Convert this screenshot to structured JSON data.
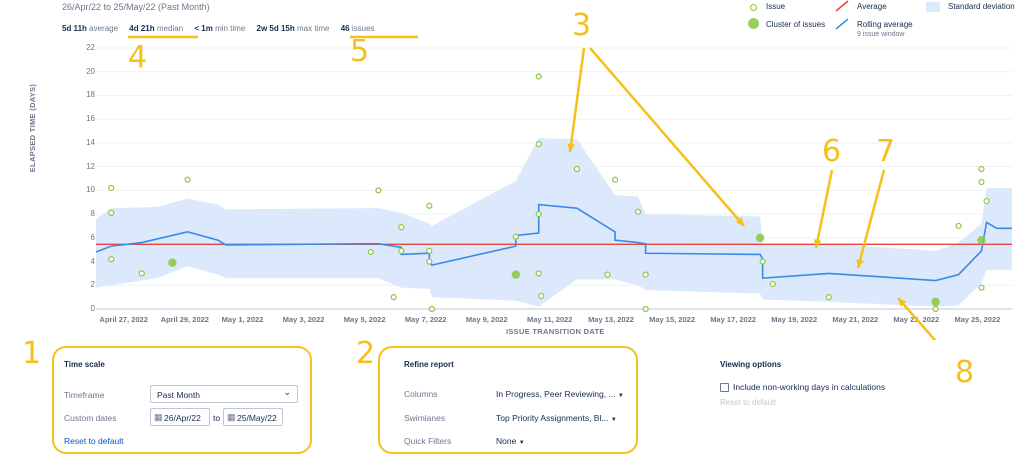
{
  "header": {
    "subtitle": "26/Apr/22 to 25/May/22 (Past Month)",
    "stats": [
      {
        "value": "5d 11h",
        "label": "average"
      },
      {
        "value": "4d 21h",
        "label": "median"
      },
      {
        "value": "< 1m",
        "label": "min time"
      },
      {
        "value": "2w 5d 15h",
        "label": "max time"
      },
      {
        "value": "46",
        "label": "issues"
      }
    ]
  },
  "legend": {
    "issue": "Issue",
    "cluster": "Cluster of issues",
    "average": "Average",
    "rolling": "Rolling average",
    "rolling_sub": "9 issue window",
    "stddev": "Standard deviation"
  },
  "colors": {
    "issue": "#8cc63f",
    "average": "#e8453c",
    "rolling": "#3a8be6",
    "stddev": "#dce8fb",
    "annotation": "#f6c01a"
  },
  "chart_data": {
    "type": "scatter",
    "xlabel": "ISSUE TRANSITION DATE",
    "ylabel": "ELAPSED TIME (DAYS)",
    "ylim": [
      0,
      22
    ],
    "yticks": [
      "0",
      "2",
      "4",
      "6",
      "8",
      "10",
      "12",
      "14",
      "16",
      "18",
      "20",
      "22"
    ],
    "xlim": [
      "2022-04-26",
      "2022-05-26"
    ],
    "xticks": [
      {
        "date": "2022-04-27",
        "label": "April 27, 2022"
      },
      {
        "date": "2022-04-29",
        "label": "April 29, 2022"
      },
      {
        "date": "2022-05-01",
        "label": "May 1, 2022"
      },
      {
        "date": "2022-05-03",
        "label": "May 3, 2022"
      },
      {
        "date": "2022-05-05",
        "label": "May 5, 2022"
      },
      {
        "date": "2022-05-07",
        "label": "May 7, 2022"
      },
      {
        "date": "2022-05-09",
        "label": "May 9, 2022"
      },
      {
        "date": "2022-05-11",
        "label": "May 11, 2022"
      },
      {
        "date": "2022-05-13",
        "label": "May 13, 2022"
      },
      {
        "date": "2022-05-15",
        "label": "May 15, 2022"
      },
      {
        "date": "2022-05-17",
        "label": "May 17, 2022"
      },
      {
        "date": "2022-05-19",
        "label": "May 19, 2022"
      },
      {
        "date": "2022-05-21",
        "label": "May 21, 2022"
      },
      {
        "date": "2022-05-23",
        "label": "May 23, 2022"
      },
      {
        "date": "2022-05-25",
        "label": "May 25, 2022"
      }
    ],
    "average": 5.45,
    "issues": [
      {
        "x": "2022-04-26T12:00",
        "y": 10.2
      },
      {
        "x": "2022-04-26T12:00",
        "y": 8.1
      },
      {
        "x": "2022-04-26T12:00",
        "y": 4.2
      },
      {
        "x": "2022-04-27T12:00",
        "y": 3.0
      },
      {
        "x": "2022-04-29T00:00",
        "y": 10.9
      },
      {
        "x": "2022-05-05T00:00",
        "y": 4.8
      },
      {
        "x": "2022-05-05T06:00",
        "y": 10.0
      },
      {
        "x": "2022-05-05T18:00",
        "y": 1.0
      },
      {
        "x": "2022-05-06T00:00",
        "y": 6.9
      },
      {
        "x": "2022-05-06T00:00",
        "y": 4.9
      },
      {
        "x": "2022-05-06T22:00",
        "y": 8.7
      },
      {
        "x": "2022-05-06T22:00",
        "y": 4.9
      },
      {
        "x": "2022-05-06T22:00",
        "y": 4.0
      },
      {
        "x": "2022-05-07T00:00",
        "y": 0.0
      },
      {
        "x": "2022-05-09T18:00",
        "y": 6.1
      },
      {
        "x": "2022-05-10T12:00",
        "y": 19.6
      },
      {
        "x": "2022-05-10T12:00",
        "y": 13.9
      },
      {
        "x": "2022-05-10T12:00",
        "y": 8.0
      },
      {
        "x": "2022-05-10T12:00",
        "y": 3.0
      },
      {
        "x": "2022-05-10T14:00",
        "y": 1.1
      },
      {
        "x": "2022-05-11T18:00",
        "y": 11.8
      },
      {
        "x": "2022-05-12T18:00",
        "y": 2.9
      },
      {
        "x": "2022-05-13T00:00",
        "y": 10.9
      },
      {
        "x": "2022-05-13T18:00",
        "y": 8.2
      },
      {
        "x": "2022-05-14T00:00",
        "y": 2.9
      },
      {
        "x": "2022-05-14T00:00",
        "y": 0.0
      },
      {
        "x": "2022-05-17T20:00",
        "y": 4.0
      },
      {
        "x": "2022-05-18T04:00",
        "y": 2.1
      },
      {
        "x": "2022-05-20T00:00",
        "y": 1.0
      },
      {
        "x": "2022-05-23T12:00",
        "y": 0.0
      },
      {
        "x": "2022-05-24T06:00",
        "y": 7.0
      },
      {
        "x": "2022-05-25T00:00",
        "y": 11.8
      },
      {
        "x": "2022-05-25T00:00",
        "y": 10.7
      },
      {
        "x": "2022-05-25T04:00",
        "y": 9.1
      },
      {
        "x": "2022-05-25T00:00",
        "y": 1.8
      }
    ],
    "clusters": [
      {
        "x": "2022-04-28T12:00",
        "y": 3.9
      },
      {
        "x": "2022-05-09T18:00",
        "y": 2.9
      },
      {
        "x": "2022-05-17T18:00",
        "y": 6.0
      },
      {
        "x": "2022-05-23T12:00",
        "y": 0.6
      },
      {
        "x": "2022-05-25T00:00",
        "y": 5.8
      }
    ],
    "rolling_average": [
      {
        "x": "2022-04-26T00:00",
        "y": 4.8
      },
      {
        "x": "2022-04-26T12:00",
        "y": 5.3
      },
      {
        "x": "2022-04-27T12:00",
        "y": 5.6
      },
      {
        "x": "2022-04-29T00:00",
        "y": 6.5
      },
      {
        "x": "2022-04-30T00:00",
        "y": 5.8
      },
      {
        "x": "2022-04-30T06:00",
        "y": 5.4
      },
      {
        "x": "2022-05-04T18:00",
        "y": 5.5
      },
      {
        "x": "2022-05-05T06:00",
        "y": 5.5
      },
      {
        "x": "2022-05-06T00:00",
        "y": 5.2
      },
      {
        "x": "2022-05-06T00:00",
        "y": 4.6
      },
      {
        "x": "2022-05-06T22:00",
        "y": 4.7
      },
      {
        "x": "2022-05-06T22:00",
        "y": 4.0
      },
      {
        "x": "2022-05-07T00:00",
        "y": 3.7
      },
      {
        "x": "2022-05-09T18:00",
        "y": 5.3
      },
      {
        "x": "2022-05-09T18:00",
        "y": 6.2
      },
      {
        "x": "2022-05-10T12:00",
        "y": 6.4
      },
      {
        "x": "2022-05-10T12:00",
        "y": 8.8
      },
      {
        "x": "2022-05-11T18:00",
        "y": 8.5
      },
      {
        "x": "2022-05-13T00:00",
        "y": 6.5
      },
      {
        "x": "2022-05-13T00:00",
        "y": 5.8
      },
      {
        "x": "2022-05-13T18:00",
        "y": 5.6
      },
      {
        "x": "2022-05-14T00:00",
        "y": 5.5
      },
      {
        "x": "2022-05-14T00:00",
        "y": 4.7
      },
      {
        "x": "2022-05-17T18:00",
        "y": 4.6
      },
      {
        "x": "2022-05-17T20:00",
        "y": 4.2
      },
      {
        "x": "2022-05-17T20:00",
        "y": 2.6
      },
      {
        "x": "2022-05-20T00:00",
        "y": 3.0
      },
      {
        "x": "2022-05-23T12:00",
        "y": 2.4
      },
      {
        "x": "2022-05-24T06:00",
        "y": 2.9
      },
      {
        "x": "2022-05-25T00:00",
        "y": 4.9
      },
      {
        "x": "2022-05-25T04:00",
        "y": 7.3
      },
      {
        "x": "2022-05-25T12:00",
        "y": 6.8
      },
      {
        "x": "2022-05-26T00:00",
        "y": 6.8
      }
    ],
    "std_upper": [
      {
        "x": "2022-04-26T00:00",
        "y": 7.6
      },
      {
        "x": "2022-04-26T12:00",
        "y": 8.5
      },
      {
        "x": "2022-04-28T00:00",
        "y": 8.6
      },
      {
        "x": "2022-04-29T00:00",
        "y": 9.3
      },
      {
        "x": "2022-04-30T00:00",
        "y": 8.8
      },
      {
        "x": "2022-04-30T06:00",
        "y": 8.4
      },
      {
        "x": "2022-05-05T06:00",
        "y": 8.5
      },
      {
        "x": "2022-05-06T00:00",
        "y": 8.1
      },
      {
        "x": "2022-05-06T22:00",
        "y": 7.2
      },
      {
        "x": "2022-05-07T00:00",
        "y": 7.0
      },
      {
        "x": "2022-05-09T18:00",
        "y": 10.8
      },
      {
        "x": "2022-05-10T12:00",
        "y": 14.4
      },
      {
        "x": "2022-05-11T18:00",
        "y": 14.3
      },
      {
        "x": "2022-05-13T00:00",
        "y": 9.6
      },
      {
        "x": "2022-05-13T18:00",
        "y": 9.5
      },
      {
        "x": "2022-05-14T00:00",
        "y": 8.0
      },
      {
        "x": "2022-05-17T18:00",
        "y": 7.8
      },
      {
        "x": "2022-05-17T20:00",
        "y": 5.5
      },
      {
        "x": "2022-05-20T00:00",
        "y": 5.5
      },
      {
        "x": "2022-05-23T12:00",
        "y": 4.9
      },
      {
        "x": "2022-05-24T06:00",
        "y": 5.6
      },
      {
        "x": "2022-05-25T00:00",
        "y": 7.2
      },
      {
        "x": "2022-05-25T04:00",
        "y": 10.2
      },
      {
        "x": "2022-05-26T00:00",
        "y": 10.2
      }
    ],
    "std_lower": [
      {
        "x": "2022-04-26T00:00",
        "y": 1.8
      },
      {
        "x": "2022-04-26T12:00",
        "y": 2.0
      },
      {
        "x": "2022-04-28T00:00",
        "y": 2.6
      },
      {
        "x": "2022-04-29T00:00",
        "y": 3.6
      },
      {
        "x": "2022-04-30T00:00",
        "y": 2.9
      },
      {
        "x": "2022-04-30T06:00",
        "y": 2.6
      },
      {
        "x": "2022-05-05T06:00",
        "y": 2.6
      },
      {
        "x": "2022-05-06T00:00",
        "y": 1.8
      },
      {
        "x": "2022-05-06T22:00",
        "y": 1.7
      },
      {
        "x": "2022-05-07T00:00",
        "y": 1.0
      },
      {
        "x": "2022-05-09T18:00",
        "y": 0.7
      },
      {
        "x": "2022-05-10T12:00",
        "y": 0.2
      },
      {
        "x": "2022-05-11T18:00",
        "y": 2.5
      },
      {
        "x": "2022-05-13T00:00",
        "y": 2.5
      },
      {
        "x": "2022-05-13T18:00",
        "y": 2.0
      },
      {
        "x": "2022-05-14T00:00",
        "y": 1.6
      },
      {
        "x": "2022-05-17T18:00",
        "y": 1.3
      },
      {
        "x": "2022-05-17T20:00",
        "y": 0.8
      },
      {
        "x": "2022-05-20T00:00",
        "y": 0.6
      },
      {
        "x": "2022-05-23T12:00",
        "y": 0.2
      },
      {
        "x": "2022-05-24T06:00",
        "y": 0.3
      },
      {
        "x": "2022-05-25T00:00",
        "y": 2.2
      },
      {
        "x": "2022-05-25T04:00",
        "y": 3.3
      },
      {
        "x": "2022-05-26T00:00",
        "y": 3.3
      }
    ]
  },
  "annotations": [
    "1",
    "2",
    "3",
    "4",
    "5",
    "6",
    "7",
    "8"
  ],
  "time_scale": {
    "title": "Time scale",
    "timeframe_label": "Timeframe",
    "timeframe_value": "Past Month",
    "custom_dates_label": "Custom dates",
    "date_from": "26/Apr/22",
    "date_sep": "to",
    "date_to": "25/May/22",
    "reset": "Reset to default"
  },
  "refine_report": {
    "title": "Refine report",
    "columns_label": "Columns",
    "columns_value": "In Progress, Peer Reviewing, ...",
    "swimlanes_label": "Swimlanes",
    "swimlanes_value": "Top Priority Assignments, Bl...",
    "quick_filters_label": "Quick Filters",
    "quick_filters_value": "None"
  },
  "viewing_options": {
    "title": "Viewing options",
    "checkbox_label": "Include non-working days in calculations",
    "reset": "Reset to default"
  }
}
